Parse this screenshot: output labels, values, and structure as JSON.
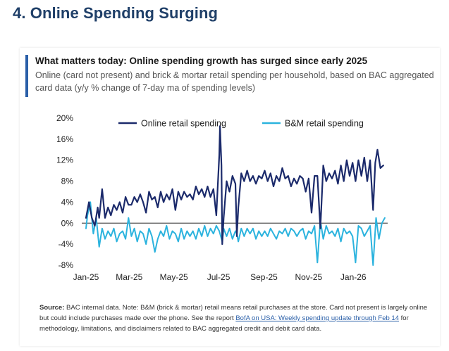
{
  "slide": {
    "title": "4. Online Spending Surging"
  },
  "colors": {
    "online": "#1b2a6b",
    "bm": "#2bb3de",
    "zero_line": "#555555",
    "accent": "#2a5fa8"
  },
  "footnote": {
    "source_label": "Source:",
    "text_before_link": "BAC internal data. Note: B&M (brick & mortar) retail means retail purchases at the store. Card not present is largely online but could include purchases made over the phone. See the report",
    "link_text": "BofA on USA: Weekly spending update through Feb 14",
    "text_after_link": "for methodology, limitations, and disclaimers related to BAC aggregated credit and debit card data."
  },
  "chart_data": {
    "type": "line",
    "title": "What matters today: Online spending growth has surged since early 2025",
    "subtitle": "Online (card not present) and brick & mortar retail spending per household, based on BAC aggregated card data (y/y % change of 7-day ma of spending levels)",
    "xlabel": "",
    "ylabel": "",
    "ylim": [
      -8,
      20
    ],
    "y_ticks": [
      20,
      16,
      12,
      8,
      4,
      0,
      -4,
      -8
    ],
    "y_tick_labels": [
      "20%",
      "16%",
      "12%",
      "8%",
      "4%",
      "0%",
      "-4%",
      "-8%"
    ],
    "x_ticks": [
      0,
      59,
      120,
      181,
      243,
      304,
      365
    ],
    "x_tick_labels": [
      "Jan-25",
      "Mar-25",
      "May-25",
      "Jul-25",
      "Sep-25",
      "Nov-25",
      "Jan-26"
    ],
    "xlim": [
      0,
      410
    ],
    "legend_position": "top",
    "series": [
      {
        "name": "Online retail spending",
        "color_key": "online",
        "x": [
          0,
          4,
          8,
          12,
          16,
          18,
          22,
          26,
          30,
          34,
          38,
          42,
          46,
          50,
          54,
          58,
          62,
          66,
          70,
          74,
          78,
          82,
          86,
          90,
          94,
          98,
          102,
          106,
          110,
          114,
          118,
          122,
          126,
          130,
          134,
          138,
          142,
          146,
          150,
          154,
          158,
          162,
          166,
          170,
          174,
          178,
          182,
          183,
          185,
          186,
          188,
          192,
          196,
          200,
          204,
          206,
          208,
          212,
          216,
          220,
          224,
          228,
          232,
          236,
          240,
          244,
          248,
          252,
          256,
          260,
          264,
          268,
          272,
          276,
          280,
          284,
          288,
          292,
          296,
          300,
          304,
          308,
          312,
          316,
          320,
          324,
          328,
          332,
          336,
          340,
          344,
          348,
          352,
          356,
          360,
          364,
          368,
          372,
          376,
          380,
          384,
          388,
          392,
          395,
          398,
          402,
          406
        ],
        "values": [
          1.0,
          4.0,
          1.0,
          -0.5,
          3.0,
          1.0,
          6.5,
          1.0,
          3.0,
          1.5,
          3.5,
          2.5,
          4.0,
          2.0,
          5.0,
          3.5,
          3.5,
          5.0,
          4.0,
          5.5,
          4.0,
          2.0,
          6.0,
          4.5,
          5.0,
          3.0,
          6.0,
          4.0,
          5.5,
          4.5,
          6.5,
          2.5,
          6.0,
          4.5,
          6.0,
          5.0,
          5.5,
          4.5,
          7.0,
          5.5,
          6.5,
          5.0,
          7.0,
          5.0,
          6.5,
          1.5,
          13.0,
          18.5,
          11.0,
          -4.0,
          1.0,
          8.0,
          6.0,
          9.0,
          7.5,
          -2.5,
          3.0,
          9.5,
          8.0,
          10.0,
          8.0,
          9.0,
          7.5,
          9.0,
          8.5,
          10.0,
          8.0,
          9.5,
          7.0,
          9.0,
          8.0,
          10.5,
          8.5,
          9.0,
          7.0,
          8.5,
          7.5,
          9.0,
          8.5,
          6.0,
          8.5,
          2.0,
          9.0,
          9.0,
          -1.0,
          11.0,
          8.0,
          9.5,
          8.5,
          10.0,
          7.5,
          11.0,
          8.0,
          12.0,
          9.0,
          11.5,
          8.0,
          12.0,
          9.0,
          12.5,
          8.0,
          12.0,
          2.5,
          11.5,
          14.0,
          10.5,
          11.0
        ]
      },
      {
        "name": "B&M retail spending",
        "color_key": "bm",
        "x": [
          0,
          2,
          6,
          10,
          14,
          18,
          22,
          26,
          30,
          34,
          38,
          42,
          46,
          50,
          54,
          58,
          62,
          66,
          70,
          74,
          78,
          82,
          86,
          90,
          94,
          98,
          102,
          106,
          110,
          114,
          118,
          122,
          126,
          130,
          134,
          138,
          142,
          146,
          150,
          154,
          158,
          162,
          166,
          170,
          174,
          178,
          182,
          186,
          188,
          192,
          196,
          200,
          204,
          206,
          208,
          212,
          216,
          220,
          224,
          228,
          232,
          236,
          240,
          244,
          248,
          252,
          256,
          260,
          264,
          268,
          272,
          276,
          280,
          284,
          288,
          292,
          296,
          300,
          304,
          308,
          312,
          316,
          320,
          324,
          328,
          332,
          336,
          340,
          344,
          348,
          352,
          356,
          360,
          364,
          368,
          372,
          376,
          380,
          384,
          388,
          392,
          394,
          396,
          400,
          404,
          408
        ],
        "values": [
          -1.0,
          1.5,
          4.0,
          -2.0,
          1.0,
          -4.5,
          -1.0,
          -3.0,
          -1.5,
          -2.5,
          -1.0,
          -3.5,
          -2.0,
          -1.5,
          -3.0,
          1.0,
          -2.5,
          -1.0,
          -3.5,
          -1.5,
          -2.0,
          -4.0,
          -1.0,
          -2.5,
          -5.5,
          -3.0,
          -1.5,
          -2.5,
          -0.5,
          -3.0,
          -1.5,
          -2.0,
          -3.5,
          -1.0,
          -3.0,
          -1.5,
          -2.5,
          -1.5,
          -3.0,
          -1.0,
          -2.5,
          -0.5,
          -2.5,
          -1.0,
          -2.0,
          -0.5,
          -1.5,
          -3.5,
          -1.0,
          -2.5,
          -1.0,
          -3.0,
          -1.5,
          -2.0,
          -3.5,
          -1.0,
          -2.5,
          -1.0,
          -2.0,
          -1.0,
          -3.0,
          -1.5,
          -2.5,
          -1.5,
          -2.5,
          -1.0,
          -2.0,
          -3.0,
          -1.5,
          -2.0,
          -1.0,
          -2.5,
          -1.0,
          -1.5,
          -2.5,
          -1.5,
          -1.0,
          -3.0,
          -1.5,
          -2.0,
          -0.5,
          -7.5,
          0.5,
          -3.0,
          -0.5,
          -2.0,
          -1.5,
          -2.5,
          -1.0,
          -3.5,
          -1.0,
          -2.0,
          -1.5,
          -2.5,
          -7.5,
          -0.5,
          -1.0,
          -2.5,
          -1.5,
          -0.5,
          -8.0,
          -3.5,
          1.0,
          -3.0,
          0.0,
          1.0
        ]
      }
    ]
  }
}
